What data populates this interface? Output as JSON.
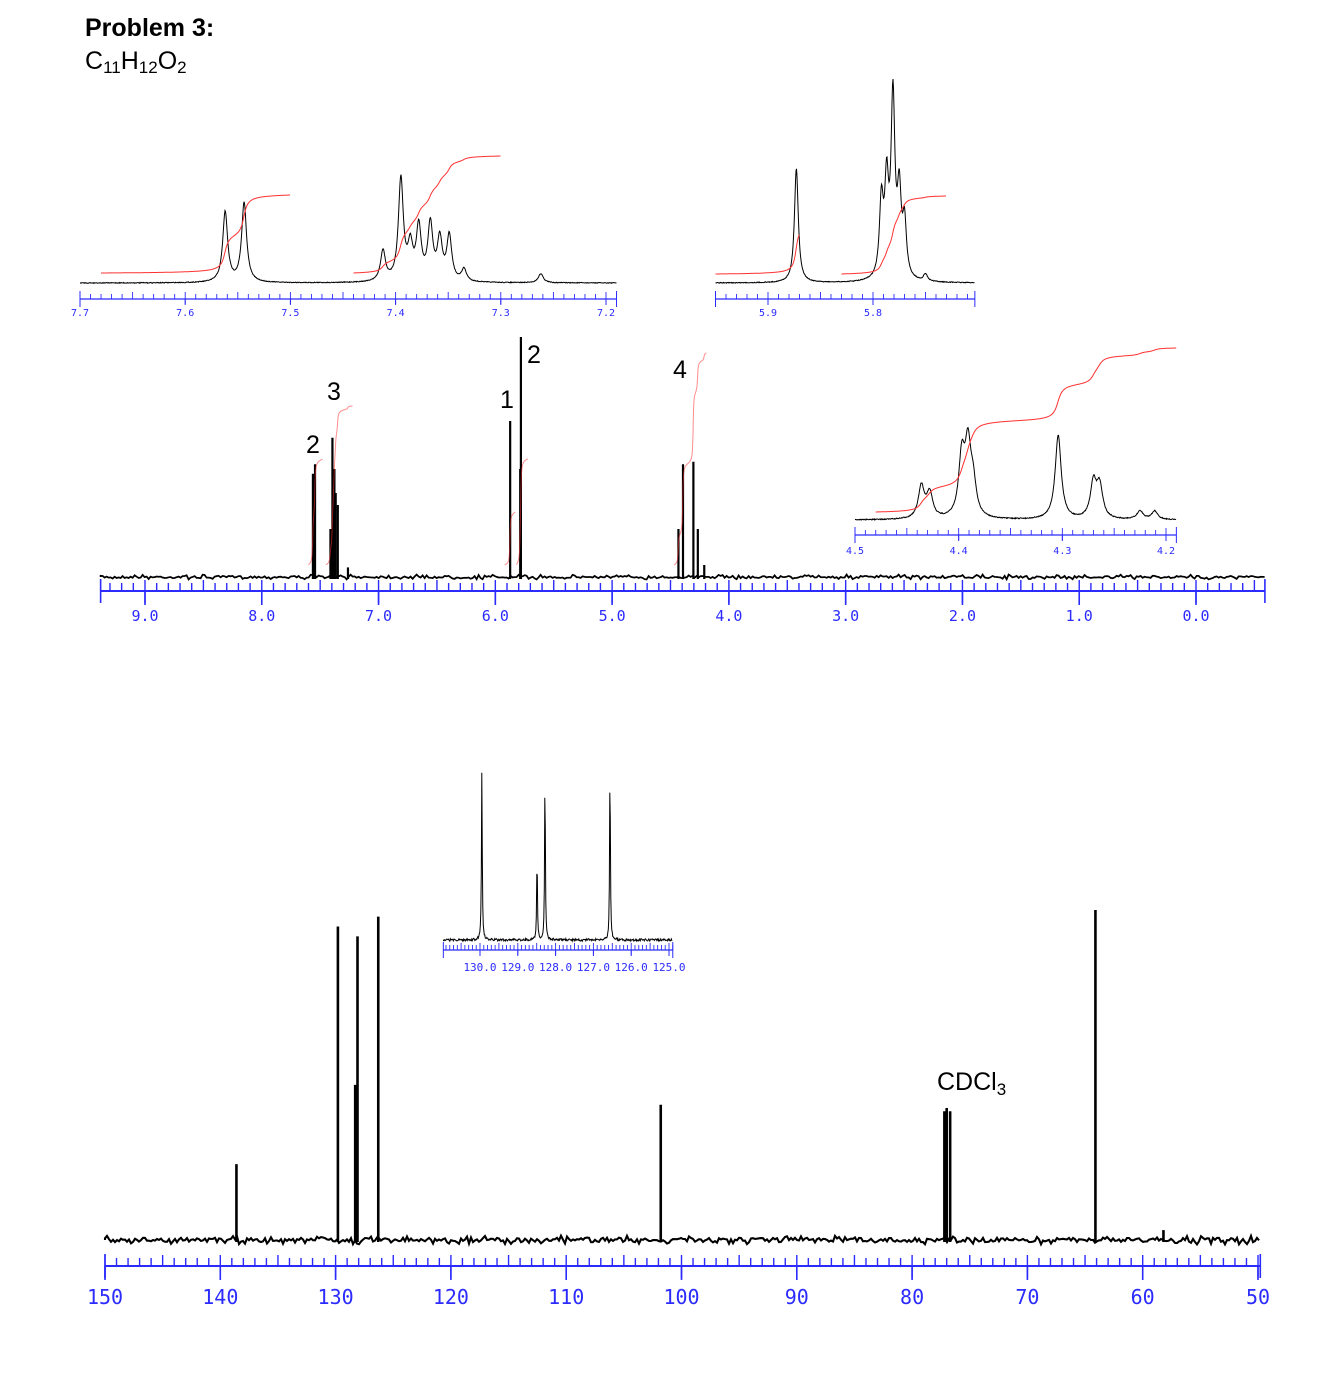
{
  "header": {
    "title": "Problem 3:",
    "formula": {
      "c": "C",
      "c_n": "11",
      "h": "H",
      "h_n": "12",
      "o": "O",
      "o_n": "2"
    }
  },
  "colors": {
    "trace": "#000000",
    "axis": "#2b2bff",
    "integral": "#ff3030"
  },
  "chart_data": [
    {
      "id": "h1",
      "type": "line",
      "title": "",
      "xlabel": "",
      "x_range": [
        9.38,
        -0.59
      ],
      "x_ticks": [
        "9.0",
        "8.0",
        "7.0",
        "6.0",
        "5.0",
        "4.0",
        "3.0",
        "2.0",
        "1.0",
        "0.0"
      ],
      "peaks": [
        [
          7.562,
          0.43
        ],
        [
          7.544,
          0.47
        ],
        [
          7.412,
          0.2
        ],
        [
          7.395,
          0.58
        ],
        [
          7.386,
          0.4
        ],
        [
          7.378,
          0.45
        ],
        [
          7.367,
          0.35
        ],
        [
          7.349,
          0.3
        ],
        [
          7.262,
          0.04
        ],
        [
          5.873,
          0.65
        ],
        [
          5.787,
          0.45
        ],
        [
          5.781,
          1.0
        ],
        [
          4.432,
          0.2
        ],
        [
          4.393,
          0.47
        ],
        [
          4.304,
          0.48
        ],
        [
          4.266,
          0.2
        ],
        [
          4.211,
          0.05
        ]
      ],
      "integrals": [
        {
          "from": 7.6,
          "to": 7.48,
          "label": "2"
        },
        {
          "from": 7.45,
          "to": 7.22,
          "label": "3"
        },
        {
          "from": 5.92,
          "to": 5.83,
          "label": "1"
        },
        {
          "from": 5.82,
          "to": 5.72,
          "label": "2"
        },
        {
          "from": 4.47,
          "to": 4.19,
          "label": "4"
        }
      ]
    },
    {
      "id": "h1_inset_aromatic",
      "type": "line",
      "x_range": [
        7.7,
        7.19
      ],
      "x_ticks": [
        "7.7",
        "7.6",
        "7.5",
        "7.4",
        "7.3",
        "7.2"
      ],
      "peaks": [
        [
          7.562,
          0.69
        ],
        [
          7.544,
          0.78
        ],
        [
          7.412,
          0.3
        ],
        [
          7.395,
          1.0
        ],
        [
          7.386,
          0.32
        ],
        [
          7.378,
          0.52
        ],
        [
          7.367,
          0.55
        ],
        [
          7.358,
          0.4
        ],
        [
          7.349,
          0.44
        ],
        [
          7.335,
          0.12
        ],
        [
          7.262,
          0.09
        ]
      ],
      "integrals": [
        {
          "from": 7.68,
          "to": 7.5,
          "label": "2"
        },
        {
          "from": 7.44,
          "to": 7.3,
          "label": "3"
        }
      ]
    },
    {
      "id": "h1_inset_vinyl",
      "type": "line",
      "x_range": [
        5.95,
        5.703
      ],
      "x_ticks": [
        "5.9",
        "5.8"
      ],
      "peaks": [
        [
          5.873,
          0.64
        ],
        [
          5.792,
          0.42
        ],
        [
          5.787,
          0.5
        ],
        [
          5.781,
          1.0
        ],
        [
          5.775,
          0.45
        ],
        [
          5.77,
          0.3
        ],
        [
          5.75,
          0.04
        ]
      ],
      "integrals": [
        {
          "from": 5.95,
          "to": 5.87,
          "label": "1"
        },
        {
          "from": 5.83,
          "to": 5.73,
          "label": "2"
        }
      ]
    },
    {
      "id": "h1_inset_ch2",
      "type": "line",
      "x_range": [
        4.5,
        4.19
      ],
      "x_ticks": [
        "4.5",
        "4.4",
        "4.3",
        "4.2"
      ],
      "peaks": [
        [
          4.436,
          0.38
        ],
        [
          4.428,
          0.3
        ],
        [
          4.397,
          0.7
        ],
        [
          4.391,
          0.8
        ],
        [
          4.386,
          0.35
        ],
        [
          4.304,
          1.0
        ],
        [
          4.27,
          0.42
        ],
        [
          4.264,
          0.38
        ],
        [
          4.225,
          0.1
        ],
        [
          4.211,
          0.1
        ]
      ],
      "integrals": [
        {
          "from": 4.48,
          "to": 4.19,
          "label": "4"
        }
      ]
    },
    {
      "id": "c13",
      "type": "line",
      "x_range": [
        150,
        49.8
      ],
      "x_ticks": [
        "150",
        "140",
        "130",
        "120",
        "110",
        "100",
        "90",
        "80",
        "70",
        "60",
        "50"
      ],
      "peaks": [
        [
          138.6,
          0.23
        ],
        [
          129.8,
          0.95
        ],
        [
          128.3,
          0.47
        ],
        [
          128.1,
          0.92
        ],
        [
          126.3,
          0.98
        ],
        [
          101.8,
          0.41
        ],
        [
          77.2,
          0.39
        ],
        [
          77.0,
          0.4
        ],
        [
          76.7,
          0.39
        ],
        [
          64.1,
          1.0
        ],
        [
          58.2,
          0.03
        ]
      ],
      "annotations": [
        {
          "text": "CDCl",
          "sub": "3"
        }
      ]
    },
    {
      "id": "c13_inset",
      "type": "line",
      "x_range": [
        130.97,
        124.9
      ],
      "x_ticks": [
        "130.0",
        "129.0",
        "128.0",
        "127.0",
        "126.0",
        "125.0"
      ],
      "peaks": [
        [
          129.95,
          0.97
        ],
        [
          128.49,
          0.48
        ],
        [
          128.28,
          0.94
        ],
        [
          126.56,
          1.0
        ]
      ]
    }
  ]
}
